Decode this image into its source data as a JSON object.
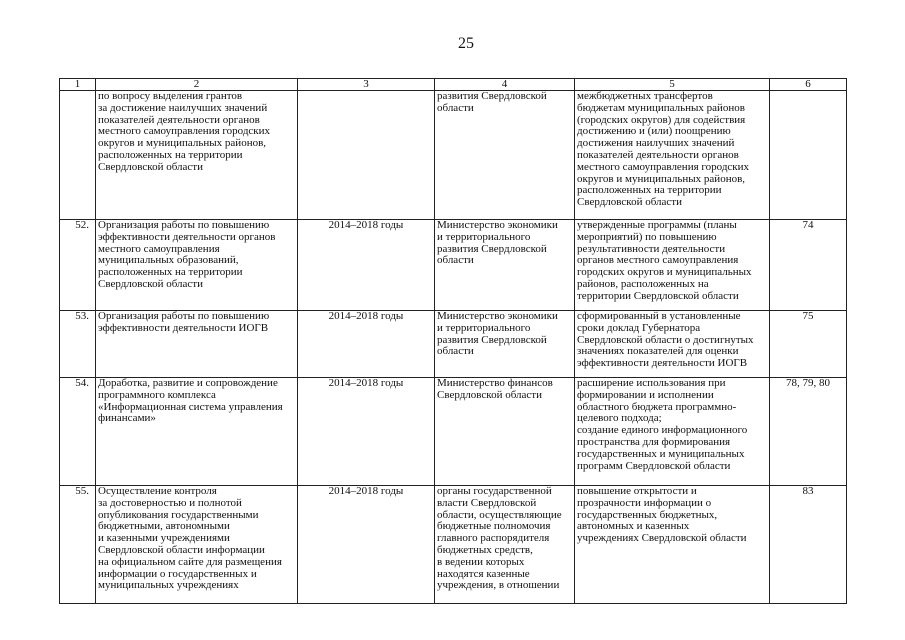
{
  "page_number": "25",
  "table": {
    "headers": [
      "1",
      "2",
      "3",
      "4",
      "5",
      "6"
    ],
    "rows": [
      {
        "num": "",
        "activity": "по вопросу выделения грантов\nза достижение наилучших значений\nпоказателей деятельности органов\nместного самоуправления городских\nокругов и муниципальных районов,\nрасположенных на территории\nСвердловской области",
        "period": "",
        "executor": "развития Свердловской\nобласти",
        "result": "межбюджетных трансфертов\nбюджетам муниципальных районов\n(городских округов) для содействия\nдостижению и (или) поощрению\nдостижения наилучших значений\nпоказателей деятельности органов\nместного самоуправления городских\nокругов и муниципальных районов,\nрасположенных на территории\nСвердловской области",
        "indicators": ""
      },
      {
        "num": "52.",
        "activity": "Организация работы по повышению\nэффективности деятельности органов\nместного самоуправления\nмуниципальных образований,\nрасположенных на территории\nСвердловской области",
        "period": "2014–2018 годы",
        "executor": "Министерство экономики\nи территориального\nразвития Свердловской\nобласти",
        "result": "утвержденные программы (планы\nмероприятий) по повышению\nрезультативности деятельности\nорганов местного самоуправления\nгородских округов и муниципальных\nрайонов, расположенных на\nтерритории Свердловской области",
        "indicators": "74"
      },
      {
        "num": "53.",
        "activity": "Организация работы по повышению\nэффективности деятельности ИОГВ",
        "period": "2014–2018 годы",
        "executor": "Министерство экономики\nи территориального\nразвития Свердловской\nобласти",
        "result": "сформированный в установленные\nсроки доклад Губернатора\nСвердловской области о достигнутых\nзначениях показателей для оценки\nэффективности деятельности ИОГВ",
        "indicators": "75"
      },
      {
        "num": "54.",
        "activity": "Доработка, развитие и сопровождение\nпрограммного комплекса\n«Информационная система управления\nфинансами»",
        "period": "2014–2018 годы",
        "executor": "Министерство финансов\nСвердловской области",
        "result": "расширение использования при\nформировании и исполнении\nобластного бюджета программно-\nцелевого подхода;\nсоздание единого информационного\nпространства для формирования\nгосударственных и муниципальных\nпрограмм Свердловской области",
        "indicators": "78, 79, 80"
      },
      {
        "num": "55.",
        "activity": "Осуществление контроля\nза достоверностью и полнотой\nопубликования государственными\nбюджетными, автономными\nи казенными учреждениями\nСвердловской области информации\nна официальном сайте для размещения\nинформации о государственных и\nмуниципальных учреждениях",
        "period": "2014–2018 годы",
        "executor": "органы государственной\nвласти Свердловской\nобласти, осуществляющие\nбюджетные полномочия\nглавного распорядителя\nбюджетных средств,\nв ведении которых\nнаходятся казенные\nучреждения, в отношении",
        "result": "повышение открытости и\nпрозрачности информации о\nгосударственных бюджетных,\nавтономных и казенных\nучреждениях Свердловской области",
        "indicators": "83"
      }
    ]
  }
}
